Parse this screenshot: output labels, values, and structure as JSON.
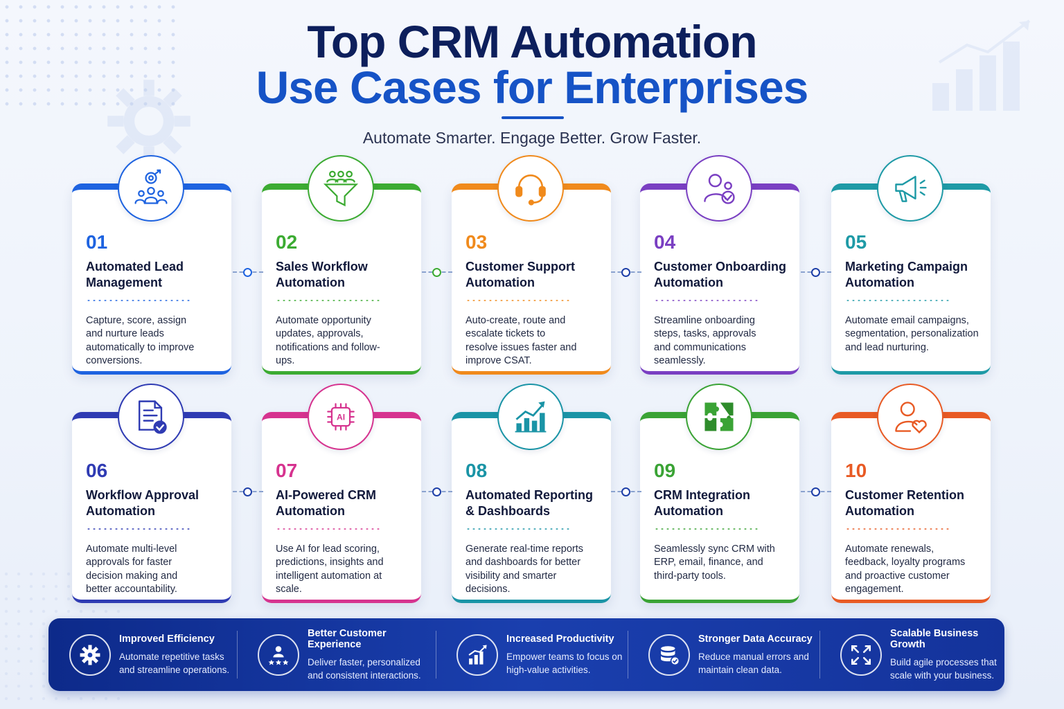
{
  "header": {
    "title_line1": "Top CRM Automation",
    "title_line2": "Use Cases for Enterprises",
    "tagline": "Automate Smarter. Engage Better. Grow Faster."
  },
  "colors": {
    "navy": "#0d1f5c",
    "brand_blue": "#1653c6",
    "blue": "#1e63e0",
    "green": "#3cab32",
    "orange": "#f08a1c",
    "purple": "#7a3fc2",
    "teal": "#1e9aa6",
    "indigo": "#2f3bb3",
    "magenta": "#d6338f",
    "teal2": "#1a94a6",
    "green2": "#3aa335",
    "red_orange": "#e85a24"
  },
  "cards": [
    {
      "number": "01",
      "title": "Automated Lead Management",
      "description": "Capture, score, assign and nurture leads automatically to improve conversions.",
      "icon": "target-team-icon"
    },
    {
      "number": "02",
      "title": "Sales Workflow Automation",
      "description": "Automate opportunity updates, approvals, notifications and follow-ups.",
      "icon": "funnel-icon"
    },
    {
      "number": "03",
      "title": "Customer Support Automation",
      "description": "Auto-create, route and escalate tickets to resolve issues faster and improve CSAT.",
      "icon": "headset-icon"
    },
    {
      "number": "04",
      "title": "Customer Onboarding Automation",
      "description": "Streamline onboarding steps, tasks, approvals and communications seamlessly.",
      "icon": "user-check-icon"
    },
    {
      "number": "05",
      "title": "Marketing Campaign Automation",
      "description": "Automate email campaigns, segmentation, personalization and lead nurturing.",
      "icon": "megaphone-icon"
    },
    {
      "number": "06",
      "title": "Workflow Approval Automation",
      "description": "Automate multi-level approvals for faster decision making and better accountability.",
      "icon": "document-check-icon"
    },
    {
      "number": "07",
      "title": "AI-Powered CRM Automation",
      "description": "Use AI for lead scoring, predictions, insights and intelligent automation at scale.",
      "icon": "ai-chip-icon"
    },
    {
      "number": "08",
      "title": "Automated Reporting & Dashboards",
      "description": "Generate real-time reports and dashboards for better visibility and smarter decisions.",
      "icon": "growth-chart-icon"
    },
    {
      "number": "09",
      "title": "CRM Integration Automation",
      "description": "Seamlessly sync CRM with ERP, email, finance, and third-party tools.",
      "icon": "puzzle-icon"
    },
    {
      "number": "10",
      "title": "Customer Retention Automation",
      "description": "Automate renewals, feedback, loyalty programs and proactive customer engagement.",
      "icon": "user-heart-icon"
    }
  ],
  "benefits": [
    {
      "title": "Improved Efficiency",
      "description": "Automate repetitive tasks and streamline operations.",
      "icon": "gear-icon"
    },
    {
      "title": "Better Customer Experience",
      "description": "Deliver faster, personalized and consistent interactions.",
      "icon": "user-stars-icon"
    },
    {
      "title": "Increased Productivity",
      "description": "Empower teams to focus on high-value activities.",
      "icon": "bar-chart-icon"
    },
    {
      "title": "Stronger Data Accuracy",
      "description": "Reduce manual errors and maintain clean data.",
      "icon": "database-check-icon"
    },
    {
      "title": "Scalable Business Growth",
      "description": "Build agile processes that scale with your business.",
      "icon": "expand-arrows-icon"
    }
  ]
}
